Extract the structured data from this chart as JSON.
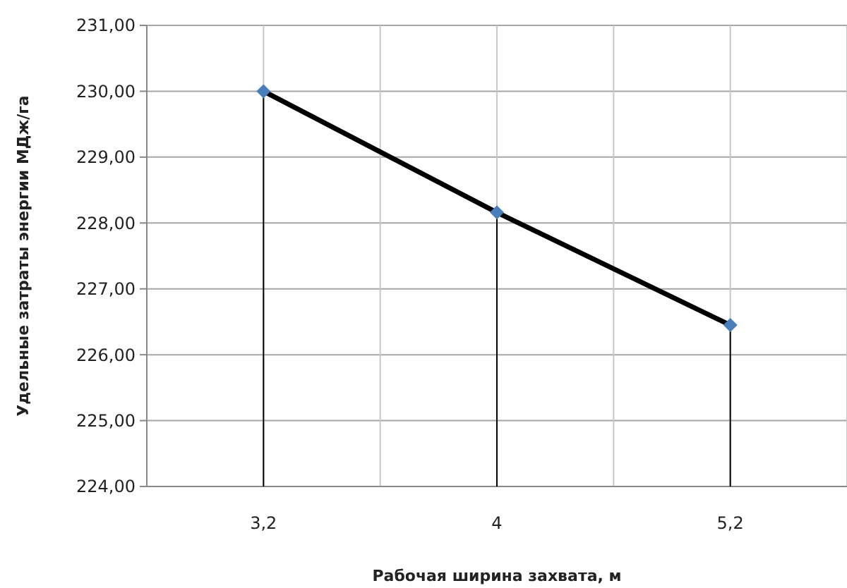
{
  "chart_data": {
    "type": "line",
    "xlabel": "Рабочая ширина захвата, м",
    "ylabel": "Удельные затраты энергии МДж/га",
    "categories": [
      "3,2",
      "4",
      "5,2"
    ],
    "series": [
      {
        "color": "#000000",
        "values": [
          230.0,
          228.16,
          226.45
        ],
        "errors": [
          [
            224,
            230.0
          ],
          [
            224,
            228.16
          ],
          [
            224,
            226.45
          ]
        ]
      }
    ],
    "ylim": [
      224,
      231
    ],
    "yticks": [
      {
        "value": 224,
        "label": "224,00"
      },
      {
        "value": 225,
        "label": "225,00"
      },
      {
        "value": 226,
        "label": "226,00"
      },
      {
        "value": 227,
        "label": "227,00"
      },
      {
        "value": 228,
        "label": "228,00"
      },
      {
        "value": 229,
        "label": "229,00"
      },
      {
        "value": 230,
        "label": "230,00"
      },
      {
        "value": 231,
        "label": "231,00"
      }
    ],
    "grid": true,
    "marker": "diamond",
    "line_style": "solid"
  }
}
